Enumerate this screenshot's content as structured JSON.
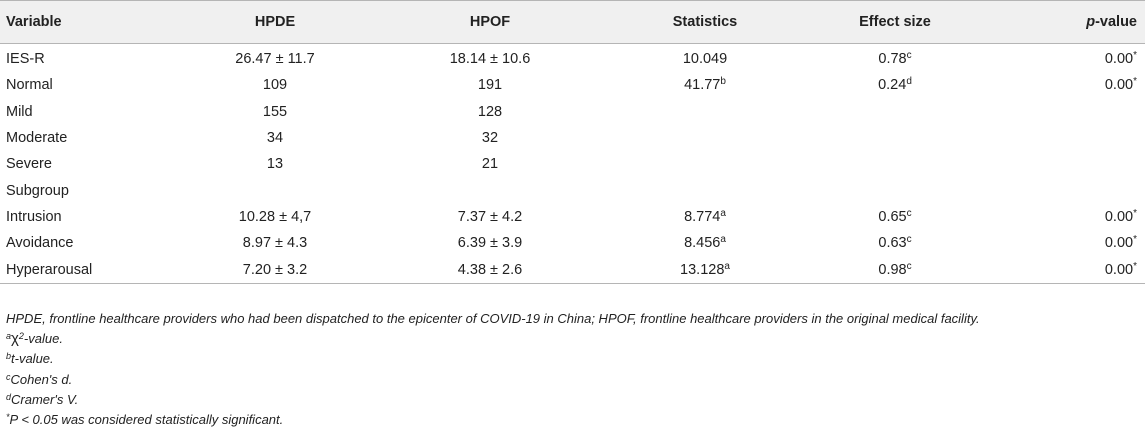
{
  "table": {
    "headers": {
      "variable": "Variable",
      "hpde": "HPDE",
      "hpof": "HPOF",
      "statistics": "Statistics",
      "effect_size": "Effect size",
      "p_value_italic": "p",
      "p_value_rest": "-value"
    },
    "rows": [
      {
        "variable": "IES-R",
        "hpde": "26.47 ± 11.7",
        "hpof": "18.14 ± 10.6",
        "statistics": "10.049",
        "stat_sup": "",
        "effect": "0.78",
        "effect_sup": "c",
        "p": "0.00",
        "p_sup": "*"
      },
      {
        "variable": "Normal",
        "hpde": "109",
        "hpof": "191",
        "statistics": "41.77",
        "stat_sup": "b",
        "effect": "0.24",
        "effect_sup": "d",
        "p": "0.00",
        "p_sup": "*"
      },
      {
        "variable": "Mild",
        "hpde": "155",
        "hpof": "128",
        "statistics": "",
        "stat_sup": "",
        "effect": "",
        "effect_sup": "",
        "p": "",
        "p_sup": ""
      },
      {
        "variable": "Moderate",
        "hpde": "34",
        "hpof": "32",
        "statistics": "",
        "stat_sup": "",
        "effect": "",
        "effect_sup": "",
        "p": "",
        "p_sup": ""
      },
      {
        "variable": "Severe",
        "hpde": "13",
        "hpof": "21",
        "statistics": "",
        "stat_sup": "",
        "effect": "",
        "effect_sup": "",
        "p": "",
        "p_sup": ""
      },
      {
        "variable": "Subgroup",
        "hpde": "",
        "hpof": "",
        "statistics": "",
        "stat_sup": "",
        "effect": "",
        "effect_sup": "",
        "p": "",
        "p_sup": ""
      },
      {
        "variable": "Intrusion",
        "hpde": "10.28 ± 4,7",
        "hpof": "7.37 ± 4.2",
        "statistics": "8.774",
        "stat_sup": "a",
        "effect": "0.65",
        "effect_sup": "c",
        "p": "0.00",
        "p_sup": "*"
      },
      {
        "variable": "Avoidance",
        "hpde": "8.97 ± 4.3",
        "hpof": "6.39 ± 3.9",
        "statistics": "8.456",
        "stat_sup": "a",
        "effect": "0.63",
        "effect_sup": "c",
        "p": "0.00",
        "p_sup": "*"
      },
      {
        "variable": "Hyperarousal",
        "hpde": "7.20 ± 3.2",
        "hpof": "4.38 ± 2.6",
        "statistics": "13.128",
        "stat_sup": "a",
        "effect": "0.98",
        "effect_sup": "c",
        "p": "0.00",
        "p_sup": "*"
      }
    ]
  },
  "footnotes": {
    "abbreviations": "HPDE, frontline healthcare providers who had been dispatched to the epicenter of COVID-19 in China; HPOF, frontline healthcare providers in the original medical facility.",
    "a_marker": "a",
    "a_symbol": "χ",
    "a_exp": "2",
    "a_text": "-value.",
    "b_marker": "b",
    "b_text": "t-value.",
    "c_marker": "c",
    "c_text": "Cohen's d.",
    "d_marker": "d",
    "d_text": "Cramer's V.",
    "star_marker": "*",
    "star_text": "P < 0.05 was considered statistically significant."
  }
}
